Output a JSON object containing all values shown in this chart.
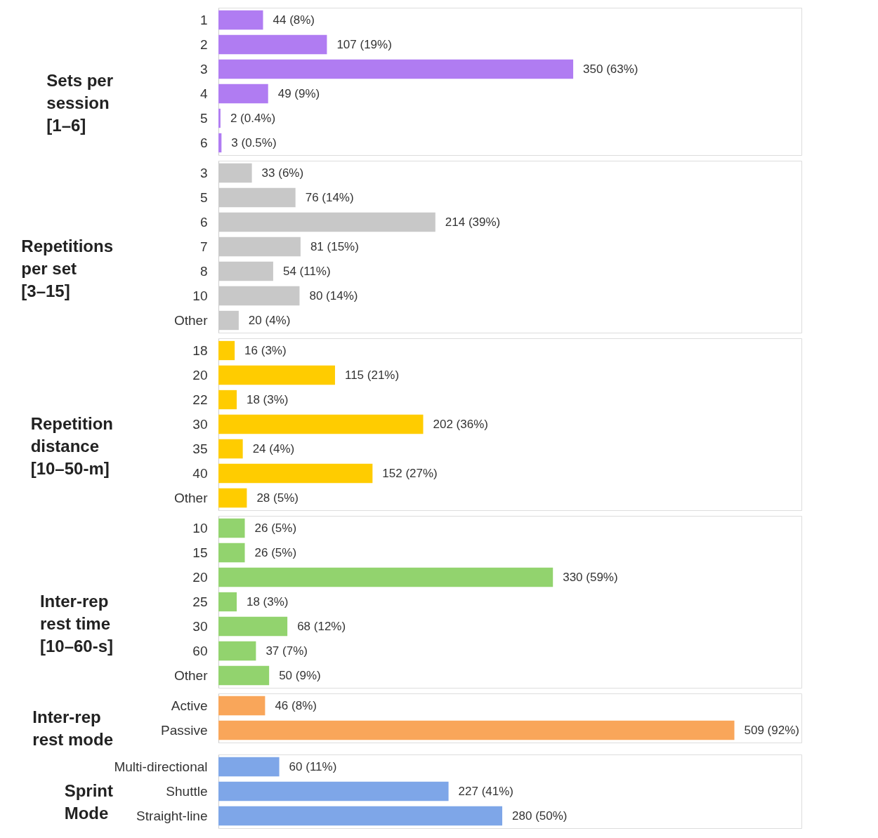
{
  "chart_data": [
    {
      "type": "bar",
      "orientation": "horizontal",
      "title": "Sets per\nsession\n[1–6]",
      "categories": [
        "1",
        "2",
        "3",
        "4",
        "5",
        "6"
      ],
      "values": [
        44,
        107,
        350,
        49,
        2,
        3
      ],
      "color": "#b07cf2",
      "value_labels": [
        "44 (8%)",
        "107 (19%)",
        "350 (63%)",
        "49 (9%)",
        "2 (0.4%)",
        "3 (0.5%)"
      ]
    },
    {
      "type": "bar",
      "orientation": "horizontal",
      "title": "Repetitions\nper set\n[3–15]",
      "categories": [
        "3",
        "5",
        "6",
        "7",
        "8",
        "10",
        "Other"
      ],
      "values": [
        33,
        76,
        214,
        81,
        54,
        80,
        20
      ],
      "color": "#c8c8c8",
      "value_labels": [
        "33 (6%)",
        "76 (14%)",
        "214 (39%)",
        "81 (15%)",
        "54 (11%)",
        "80 (14%)",
        "20 (4%)"
      ]
    },
    {
      "type": "bar",
      "orientation": "horizontal",
      "title": "Repetition\ndistance\n[10–50-m]",
      "categories": [
        "18",
        "20",
        "22",
        "30",
        "35",
        "40",
        "Other"
      ],
      "values": [
        16,
        115,
        18,
        202,
        24,
        152,
        28
      ],
      "color": "#ffcc00",
      "value_labels": [
        "16 (3%)",
        "115 (21%)",
        "18 (3%)",
        "202 (36%)",
        "24 (4%)",
        "152 (27%)",
        "28 (5%)"
      ]
    },
    {
      "type": "bar",
      "orientation": "horizontal",
      "title": "Inter-rep\nrest time\n[10–60-s]",
      "categories": [
        "10",
        "15",
        "20",
        "25",
        "30",
        "60",
        "Other"
      ],
      "values": [
        26,
        26,
        330,
        18,
        68,
        37,
        50
      ],
      "color": "#92d36e",
      "value_labels": [
        "26 (5%)",
        "26 (5%)",
        "330 (59%)",
        "18 (3%)",
        "68 (12%)",
        "37 (7%)",
        "50 (9%)"
      ]
    },
    {
      "type": "bar",
      "orientation": "horizontal",
      "title": "Inter-rep\nrest mode",
      "categories": [
        "Active",
        "Passive"
      ],
      "values": [
        46,
        509
      ],
      "color": "#f9a65a",
      "value_labels": [
        "46 (8%)",
        "509 (92%)"
      ]
    },
    {
      "type": "bar",
      "orientation": "horizontal",
      "title": "Sprint\nMode",
      "categories": [
        "Multi-directional",
        "Shuttle",
        "Straight-line"
      ],
      "values": [
        60,
        227,
        280
      ],
      "color": "#7ea6e8",
      "value_labels": [
        "60 (11%)",
        "227 (41%)",
        "280 (50%)"
      ]
    }
  ]
}
